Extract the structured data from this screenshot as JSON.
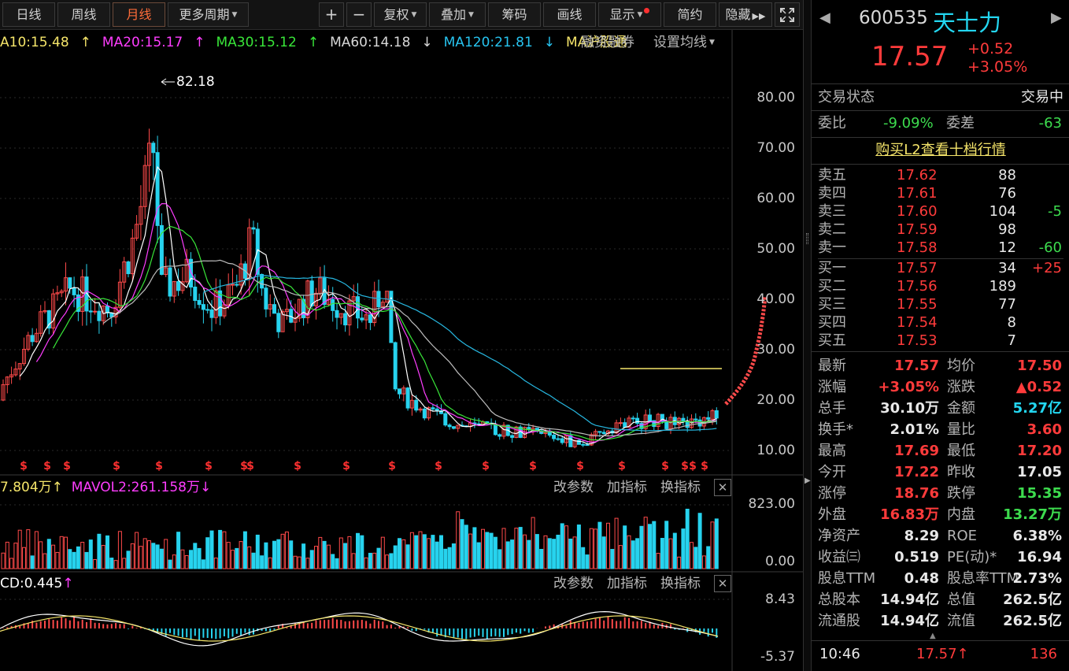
{
  "toolbar": {
    "day": "日线",
    "week": "周线",
    "month": "月线",
    "more": "更多周期",
    "plus": "+",
    "minus": "−",
    "fuquan": "复权",
    "diejia": "叠加",
    "chouma": "筹码",
    "huaxian": "画线",
    "xianshi": "显示",
    "jianyue": "简约",
    "yincang": "隐藏"
  },
  "ma_legend": {
    "ma10": "A10:15.48",
    "ma20": "MA20:15.17",
    "ma30": "MA30:15.12",
    "ma60": "MA60:14.18",
    "ma120": "MA120:21.81",
    "ma_hgt": "MA沪股通",
    "rzrq": "融资融券",
    "settings": "设置均线"
  },
  "price_axis": [
    "80.00",
    "70.00",
    "60.00",
    "50.00",
    "40.00",
    "30.00",
    "20.00",
    "10.00"
  ],
  "peak_label": "82.18",
  "vol": {
    "legend1": "7.804万",
    "legend2": "MAVOL2:261.158万",
    "axis_top": "823.00",
    "axis_bottom": "0.00"
  },
  "macd": {
    "legend": "CD:0.445",
    "axis_top": "8.43",
    "axis_bottom": "-5.37"
  },
  "indicator_buttons": {
    "params": "改参数",
    "add": "加指标",
    "switch": "换指标"
  },
  "quote": {
    "code": "600535",
    "name": "天士力",
    "price": "17.57",
    "change": "+0.52",
    "change_pct": "+3.05%",
    "trade_status_label": "交易状态",
    "trade_status": "交易中",
    "weibi_label": "委比",
    "weibi": "-9.09%",
    "weicha_label": "委差",
    "weicha": "-63",
    "l2_link": "购买L2查看十档行情"
  },
  "asks": [
    {
      "label": "卖五",
      "price": "17.62",
      "vol": "88",
      "chg": ""
    },
    {
      "label": "卖四",
      "price": "17.61",
      "vol": "76",
      "chg": ""
    },
    {
      "label": "卖三",
      "price": "17.60",
      "vol": "104",
      "chg": "-5"
    },
    {
      "label": "卖二",
      "price": "17.59",
      "vol": "98",
      "chg": ""
    },
    {
      "label": "卖一",
      "price": "17.58",
      "vol": "12",
      "chg": "-60"
    }
  ],
  "bids": [
    {
      "label": "买一",
      "price": "17.57",
      "vol": "34",
      "chg": "+25"
    },
    {
      "label": "买二",
      "price": "17.56",
      "vol": "189",
      "chg": ""
    },
    {
      "label": "买三",
      "price": "17.55",
      "vol": "77",
      "chg": ""
    },
    {
      "label": "买四",
      "price": "17.54",
      "vol": "8",
      "chg": ""
    },
    {
      "label": "买五",
      "price": "17.53",
      "vol": "7",
      "chg": ""
    }
  ],
  "stats": [
    {
      "l1": "最新",
      "v1": "17.57",
      "c1": "red",
      "l2": "均价",
      "v2": "17.50",
      "c2": "red"
    },
    {
      "l1": "涨幅",
      "v1": "+3.05%",
      "c1": "red",
      "l2": "涨跌",
      "v2": "▲0.52",
      "c2": "red"
    },
    {
      "l1": "总手",
      "v1": "30.10万",
      "c1": "white",
      "l2": "金额",
      "v2": "5.27亿",
      "c2": "cyan"
    },
    {
      "l1": "换手*",
      "v1": "2.01%",
      "c1": "white",
      "l2": "量比",
      "v2": "3.60",
      "c2": "red"
    },
    {
      "l1": "最高",
      "v1": "17.69",
      "c1": "red",
      "l2": "最低",
      "v2": "17.20",
      "c2": "red"
    },
    {
      "l1": "今开",
      "v1": "17.22",
      "c1": "red",
      "l2": "昨收",
      "v2": "17.05",
      "c2": "white"
    },
    {
      "l1": "涨停",
      "v1": "18.76",
      "c1": "red",
      "l2": "跌停",
      "v2": "15.35",
      "c2": "green"
    },
    {
      "l1": "外盘",
      "v1": "16.83万",
      "c1": "red",
      "l2": "内盘",
      "v2": "13.27万",
      "c2": "green"
    },
    {
      "l1": "净资产",
      "v1": "8.29",
      "c1": "white",
      "l2": "ROE",
      "v2": "6.38%",
      "c2": "white"
    },
    {
      "l1": "收益㈢",
      "v1": "0.519",
      "c1": "white",
      "l2": "PE(动)*",
      "v2": "16.94",
      "c2": "white"
    },
    {
      "l1": "股息TTM",
      "v1": "0.48",
      "c1": "white",
      "l2": "股息率TTM",
      "v2": "2.73%",
      "c2": "white"
    },
    {
      "l1": "总股本",
      "v1": "14.94亿",
      "c1": "white",
      "l2": "总值",
      "v2": "262.5亿",
      "c2": "white"
    },
    {
      "l1": "流通股",
      "v1": "14.94亿",
      "c1": "white",
      "l2": "流值",
      "v2": "262.5亿",
      "c2": "white"
    }
  ],
  "tick": {
    "time": "10:46",
    "price": "17.57",
    "vol": "136"
  },
  "colors": {
    "up": "#ff3b3b",
    "down": "#23d6f0",
    "ma10": "#ffffff",
    "ma20": "#ff3dff",
    "ma30": "#39e639",
    "ma60": "#bdbdbd",
    "ma120": "#27b7e0",
    "accent": "#ff6c39"
  }
}
